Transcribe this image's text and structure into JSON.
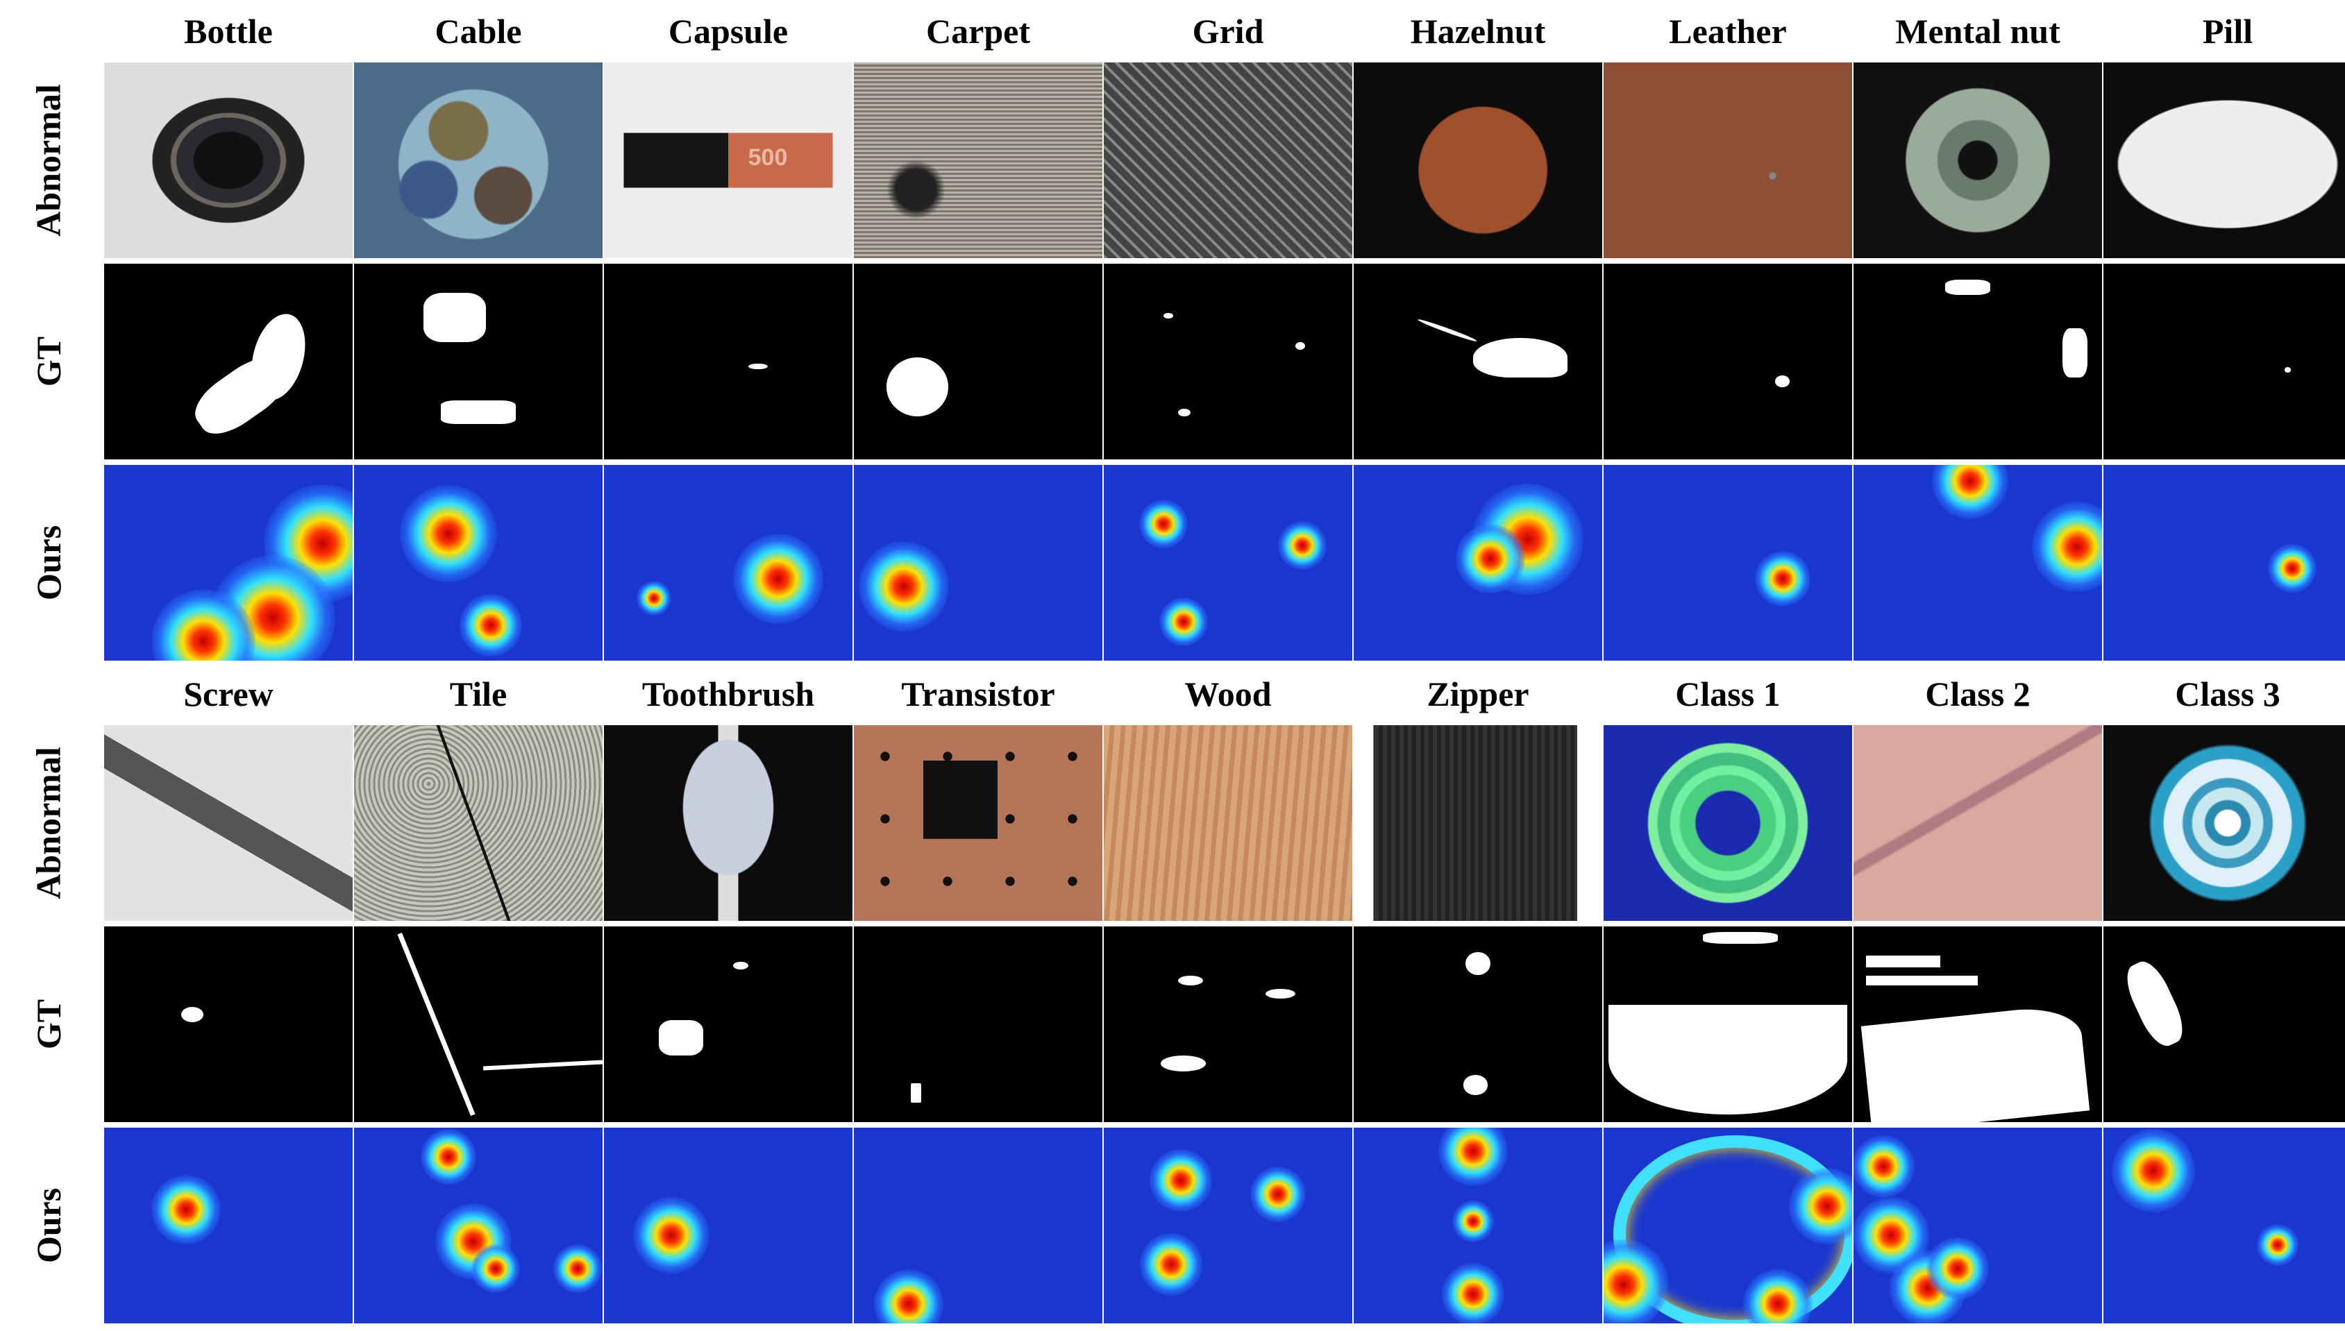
{
  "top_block": {
    "classes": [
      "Bottle",
      "Cable",
      "Capsule",
      "Carpet",
      "Grid",
      "Hazelnut",
      "Leather",
      "Mental nut",
      "Pill"
    ],
    "row_labels": [
      "Abnormal",
      "GT",
      "Ours"
    ]
  },
  "bottom_block": {
    "classes": [
      "Screw",
      "Tile",
      "Toothbrush",
      "Transistor",
      "Wood",
      "Zipper",
      "Class 1",
      "Class 2",
      "Class 3"
    ],
    "row_labels": [
      "Abnormal",
      "GT",
      "Ours"
    ]
  },
  "colors": {
    "heatmap_background": "#1a36cf",
    "gt_background": "#000000",
    "gt_mask": "#ffffff"
  },
  "capsule_print": "500"
}
